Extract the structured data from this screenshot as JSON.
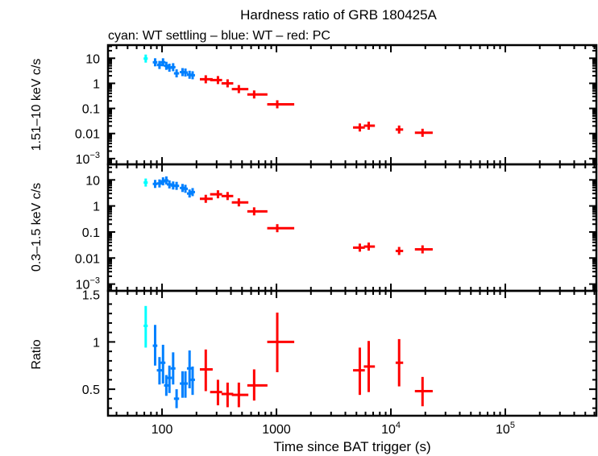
{
  "chart_data": {
    "type": "scatter",
    "title": "Hardness ratio of GRB 180425A",
    "subtitle": "cyan: WT settling – blue: WT – red: PC",
    "xlabel": "Time since BAT trigger (s)",
    "xscale": "log",
    "xlim": [
      33.7,
      625000
    ],
    "xticks": [
      {
        "v": 100,
        "label": "100"
      },
      {
        "v": 1000,
        "label": "1000"
      },
      {
        "v": 10000,
        "label": "10",
        "sup": "4"
      },
      {
        "v": 100000,
        "label": "10",
        "sup": "5"
      }
    ],
    "colors": {
      "WT settling": "#00ffff",
      "WT": "#0080ff",
      "PC": "#ff0000"
    },
    "series_times": {
      "WT settling": {
        "t": [
          72
        ],
        "tlo": [
          69
        ],
        "thi": [
          75
        ]
      },
      "WT": {
        "t": [
          87,
          95,
          102,
          109,
          116,
          125,
          134,
          151,
          160,
          174,
          185
        ],
        "tlo": [
          83,
          90,
          97,
          104,
          110,
          119,
          127,
          143,
          152,
          165,
          176
        ],
        "thi": [
          91,
          100,
          107,
          114,
          122,
          131,
          141,
          159,
          168,
          183,
          194
        ]
      },
      "PC": {
        "t": [
          241,
          308,
          374,
          469,
          638,
          1016,
          5350,
          6400,
          11800,
          18900
        ],
        "tlo": [
          214,
          263,
          331,
          407,
          556,
          830,
          4670,
          5800,
          11000,
          16200
        ],
        "thi": [
          277,
          335,
          419,
          568,
          834,
          1430,
          5920,
          7250,
          12800,
          23200
        ]
      }
    },
    "panels": [
      {
        "ylabel": "1.51–10 keV c/s",
        "yscale": "log",
        "ylim": [
          0.00059,
          33.4
        ],
        "yticks": [
          {
            "v": 10,
            "label": "10"
          },
          {
            "v": 1,
            "label": "1"
          },
          {
            "v": 0.1,
            "label": "0.1"
          },
          {
            "v": 0.01,
            "label": "0.01"
          },
          {
            "v": 0.001,
            "label": "10",
            "sup": "−3"
          }
        ],
        "series": {
          "WT settling": {
            "y": [
              9.7
            ]
          },
          "WT": {
            "y": [
              6.9,
              5.4,
              6.9,
              5.0,
              4.2,
              4.4,
              2.5,
              2.8,
              2.7,
              2.2,
              2.1
            ]
          },
          "PC": {
            "y": [
              1.45,
              1.35,
              1.0,
              0.59,
              0.36,
              0.146,
              0.0174,
              0.0205,
              0.0144,
              0.0107
            ]
          }
        }
      },
      {
        "ylabel": "0.3–1.5 keV c/s",
        "yscale": "log",
        "ylim": [
          0.00055,
          39.5
        ],
        "yticks": [
          {
            "v": 10,
            "label": "10"
          },
          {
            "v": 1,
            "label": "1"
          },
          {
            "v": 0.1,
            "label": "0.1"
          },
          {
            "v": 0.01,
            "label": "0.01"
          },
          {
            "v": 0.001,
            "label": "10",
            "sup": "−3"
          }
        ],
        "series": {
          "WT settling": {
            "y": [
              7.9
            ]
          },
          "WT": {
            "y": [
              7.0,
              7.3,
              8.8,
              9.5,
              6.7,
              6.1,
              5.9,
              4.9,
              4.55,
              3.0,
              3.4
            ]
          },
          "PC": {
            "y": [
              1.88,
              2.8,
              2.4,
              1.37,
              0.62,
              0.14,
              0.025,
              0.0275,
              0.0187,
              0.0215
            ]
          }
        }
      },
      {
        "ylabel": "Ratio",
        "yscale": "linear",
        "ylim": [
          0.22,
          1.54
        ],
        "yticks": [
          {
            "v": 0.5,
            "label": "0.5"
          },
          {
            "v": 1,
            "label": "1"
          },
          {
            "v": 1.5,
            "label": "1.5"
          }
        ],
        "series": {
          "WT settling": {
            "y": [
              1.17
            ],
            "ylo": [
              0.94
            ],
            "yhi": [
              1.38
            ]
          },
          "WT": {
            "y": [
              0.96,
              0.7,
              0.78,
              0.54,
              0.62,
              0.72,
              0.4,
              0.56,
              0.56,
              0.72,
              0.6
            ],
            "ylo": [
              0.75,
              0.55,
              0.56,
              0.43,
              0.46,
              0.55,
              0.3,
              0.41,
              0.41,
              0.51,
              0.44
            ],
            "yhi": [
              1.18,
              0.84,
              0.97,
              0.65,
              0.75,
              0.89,
              0.5,
              0.69,
              0.69,
              0.91,
              0.74
            ]
          },
          "PC": {
            "y": [
              0.71,
              0.47,
              0.45,
              0.44,
              0.54,
              1.0,
              0.7,
              0.74,
              0.78,
              0.48
            ],
            "ylo": [
              0.48,
              0.33,
              0.31,
              0.31,
              0.38,
              0.68,
              0.44,
              0.47,
              0.53,
              0.32
            ],
            "yhi": [
              0.92,
              0.6,
              0.57,
              0.57,
              0.71,
              1.31,
              0.94,
              1.01,
              1.03,
              0.63
            ]
          }
        }
      }
    ]
  }
}
